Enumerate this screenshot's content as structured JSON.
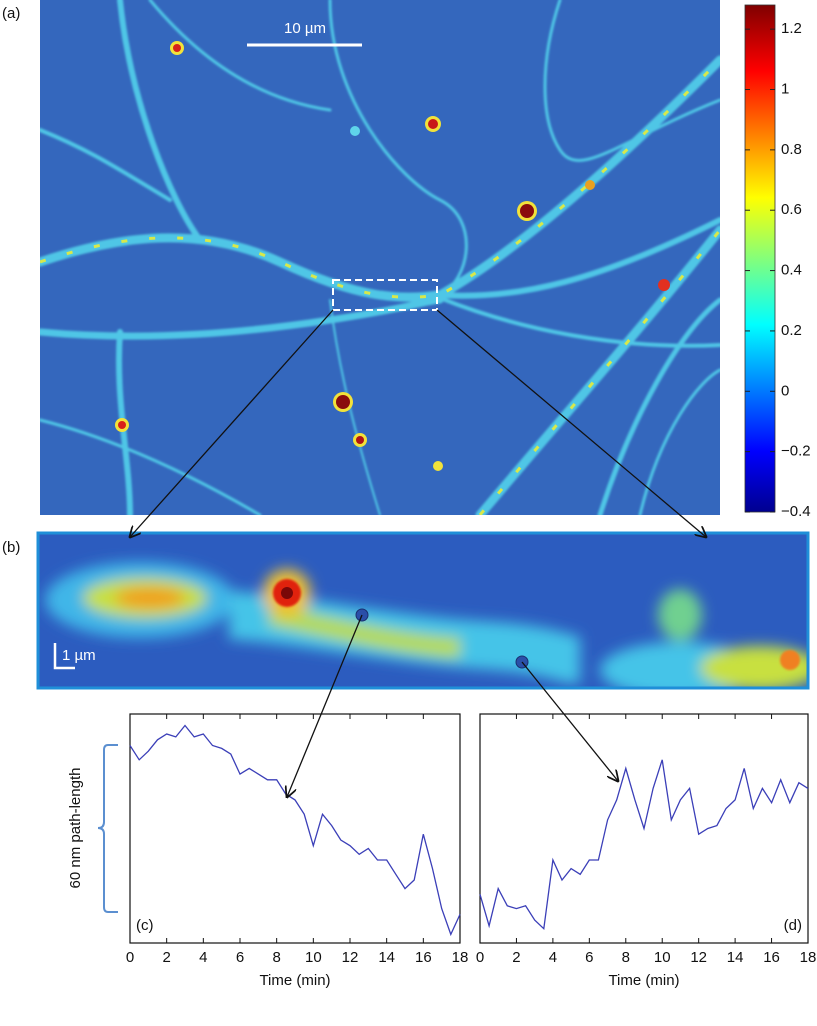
{
  "chart_data": [
    {
      "type": "heatmap",
      "panel_label": "(a)",
      "scale_bar": "10 µm",
      "colorbar": {
        "lim": [
          -0.4,
          1.28
        ],
        "ticks": [
          {
            "value": -0.4,
            "label": "−0.4"
          },
          {
            "value": -0.2,
            "label": "−0.2"
          },
          0,
          0.2,
          0.4,
          0.6,
          0.8,
          1,
          1.2
        ]
      }
    },
    {
      "type": "heatmap",
      "panel_label": "(b)",
      "scale_bar": "1 µm"
    },
    {
      "type": "line",
      "panel_label": "(c)",
      "xlabel": "Time (min)",
      "ylabel": "60 nm path-length",
      "x": [
        0,
        0.5,
        1,
        1.5,
        2,
        2.5,
        3,
        3.5,
        4,
        4.5,
        5,
        5.5,
        6,
        6.5,
        7,
        7.5,
        8,
        8.5,
        9,
        9.5,
        10,
        10.5,
        11,
        11.5,
        12,
        12.5,
        13,
        13.5,
        14,
        14.5,
        15,
        15.5,
        16,
        16.5,
        17,
        17.5,
        18
      ],
      "series": [
        {
          "color": "#3b3fb8",
          "values": [
            69,
            64,
            67,
            71,
            73,
            72,
            76,
            72,
            73,
            69,
            68,
            66,
            59,
            61,
            59,
            57,
            57,
            52,
            50,
            45,
            34,
            45,
            41,
            36,
            34,
            31,
            33,
            29,
            29,
            24,
            19,
            22,
            38,
            26,
            12,
            3,
            10
          ]
        }
      ],
      "xlim": [
        0,
        18
      ],
      "xticks": [
        0,
        2,
        4,
        6,
        8,
        10,
        12,
        14,
        16,
        18
      ],
      "ylim": [
        0,
        80
      ]
    },
    {
      "type": "line",
      "panel_label": "(d)",
      "xlabel": "Time (min)",
      "x": [
        0,
        0.5,
        1,
        1.5,
        2,
        2.5,
        3,
        3.5,
        4,
        4.5,
        5,
        5.5,
        6,
        6.5,
        7,
        7.5,
        8,
        8.5,
        9,
        9.5,
        10,
        10.5,
        11,
        11.5,
        12,
        12.5,
        13,
        13.5,
        14,
        14.5,
        15,
        15.5,
        16,
        16.5,
        17,
        17.5,
        18
      ],
      "series": [
        {
          "color": "#3b3fb8",
          "values": [
            17,
            6,
            19,
            13,
            12,
            13,
            8,
            5,
            29,
            22,
            26,
            24,
            29,
            29,
            43,
            50,
            61,
            50,
            40,
            54,
            64,
            43,
            50,
            54,
            38,
            40,
            41,
            47,
            50,
            61,
            47,
            54,
            49,
            57,
            49,
            56,
            54
          ]
        }
      ],
      "xlim": [
        0,
        18
      ],
      "xticks": [
        0,
        2,
        4,
        6,
        8,
        10,
        12,
        14,
        16,
        18
      ],
      "ylim": [
        0,
        80
      ]
    }
  ]
}
